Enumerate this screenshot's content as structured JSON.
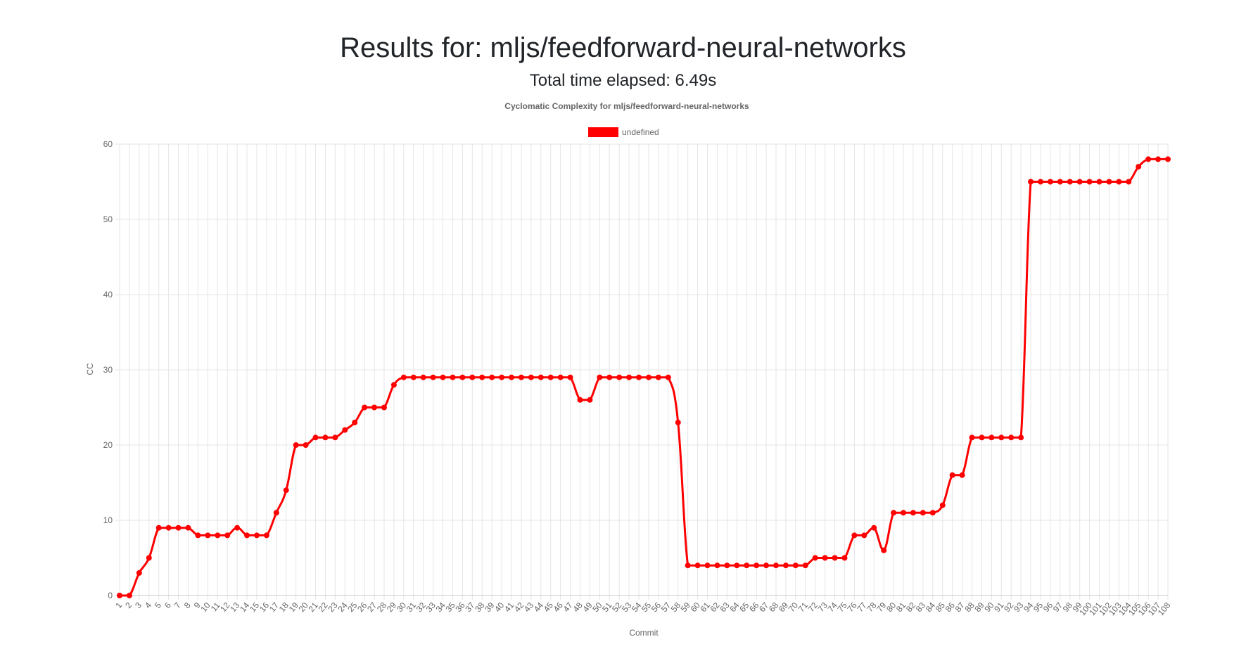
{
  "header": {
    "title": "Results for: mljs/feedforward-neural-networks",
    "subtitle": "Total time elapsed: 6.49s"
  },
  "chart_data": {
    "type": "line",
    "title": "Cyclomatic Complexity for mljs/feedforward-neural-networks",
    "xlabel": "Commit",
    "ylabel": "CC",
    "ylim": [
      0,
      60
    ],
    "yticks": [
      0,
      10,
      20,
      30,
      40,
      50,
      60
    ],
    "grid": true,
    "legend_position": "top-center",
    "series_color": "#ff0000",
    "categories": [
      "1",
      "2",
      "3",
      "4",
      "5",
      "6",
      "7",
      "8",
      "9",
      "10",
      "11",
      "12",
      "13",
      "14",
      "15",
      "16",
      "17",
      "18",
      "19",
      "20",
      "21",
      "22",
      "23",
      "24",
      "25",
      "26",
      "27",
      "28",
      "29",
      "30",
      "31",
      "32",
      "33",
      "34",
      "35",
      "36",
      "37",
      "38",
      "39",
      "40",
      "41",
      "42",
      "43",
      "44",
      "45",
      "46",
      "47",
      "48",
      "49",
      "50",
      "51",
      "52",
      "53",
      "54",
      "55",
      "56",
      "57",
      "58",
      "59",
      "60",
      "61",
      "62",
      "63",
      "64",
      "65",
      "66",
      "67",
      "68",
      "69",
      "70",
      "71",
      "72",
      "73",
      "74",
      "75",
      "76",
      "77",
      "78",
      "79",
      "80",
      "81",
      "82",
      "83",
      "84",
      "85",
      "86",
      "87",
      "88",
      "89",
      "90",
      "91",
      "92",
      "93",
      "94",
      "95",
      "96",
      "97",
      "98",
      "99",
      "100",
      "101",
      "102",
      "103",
      "104",
      "105",
      "106",
      "107",
      "108"
    ],
    "series": [
      {
        "name": "undefined",
        "values": [
          0,
          0,
          3,
          5,
          9,
          9,
          9,
          9,
          8,
          8,
          8,
          8,
          9,
          8,
          8,
          8,
          11,
          14,
          20,
          20,
          21,
          21,
          21,
          22,
          23,
          25,
          25,
          25,
          28,
          29,
          29,
          29,
          29,
          29,
          29,
          29,
          29,
          29,
          29,
          29,
          29,
          29,
          29,
          29,
          29,
          29,
          29,
          26,
          26,
          29,
          29,
          29,
          29,
          29,
          29,
          29,
          29,
          23,
          4,
          4,
          4,
          4,
          4,
          4,
          4,
          4,
          4,
          4,
          4,
          4,
          4,
          5,
          5,
          5,
          5,
          8,
          8,
          9,
          6,
          11,
          11,
          11,
          11,
          11,
          12,
          16,
          16,
          21,
          21,
          21,
          21,
          21,
          21,
          55,
          55,
          55,
          55,
          55,
          55,
          55,
          55,
          55,
          55,
          55,
          57,
          58,
          58,
          58
        ]
      }
    ]
  }
}
